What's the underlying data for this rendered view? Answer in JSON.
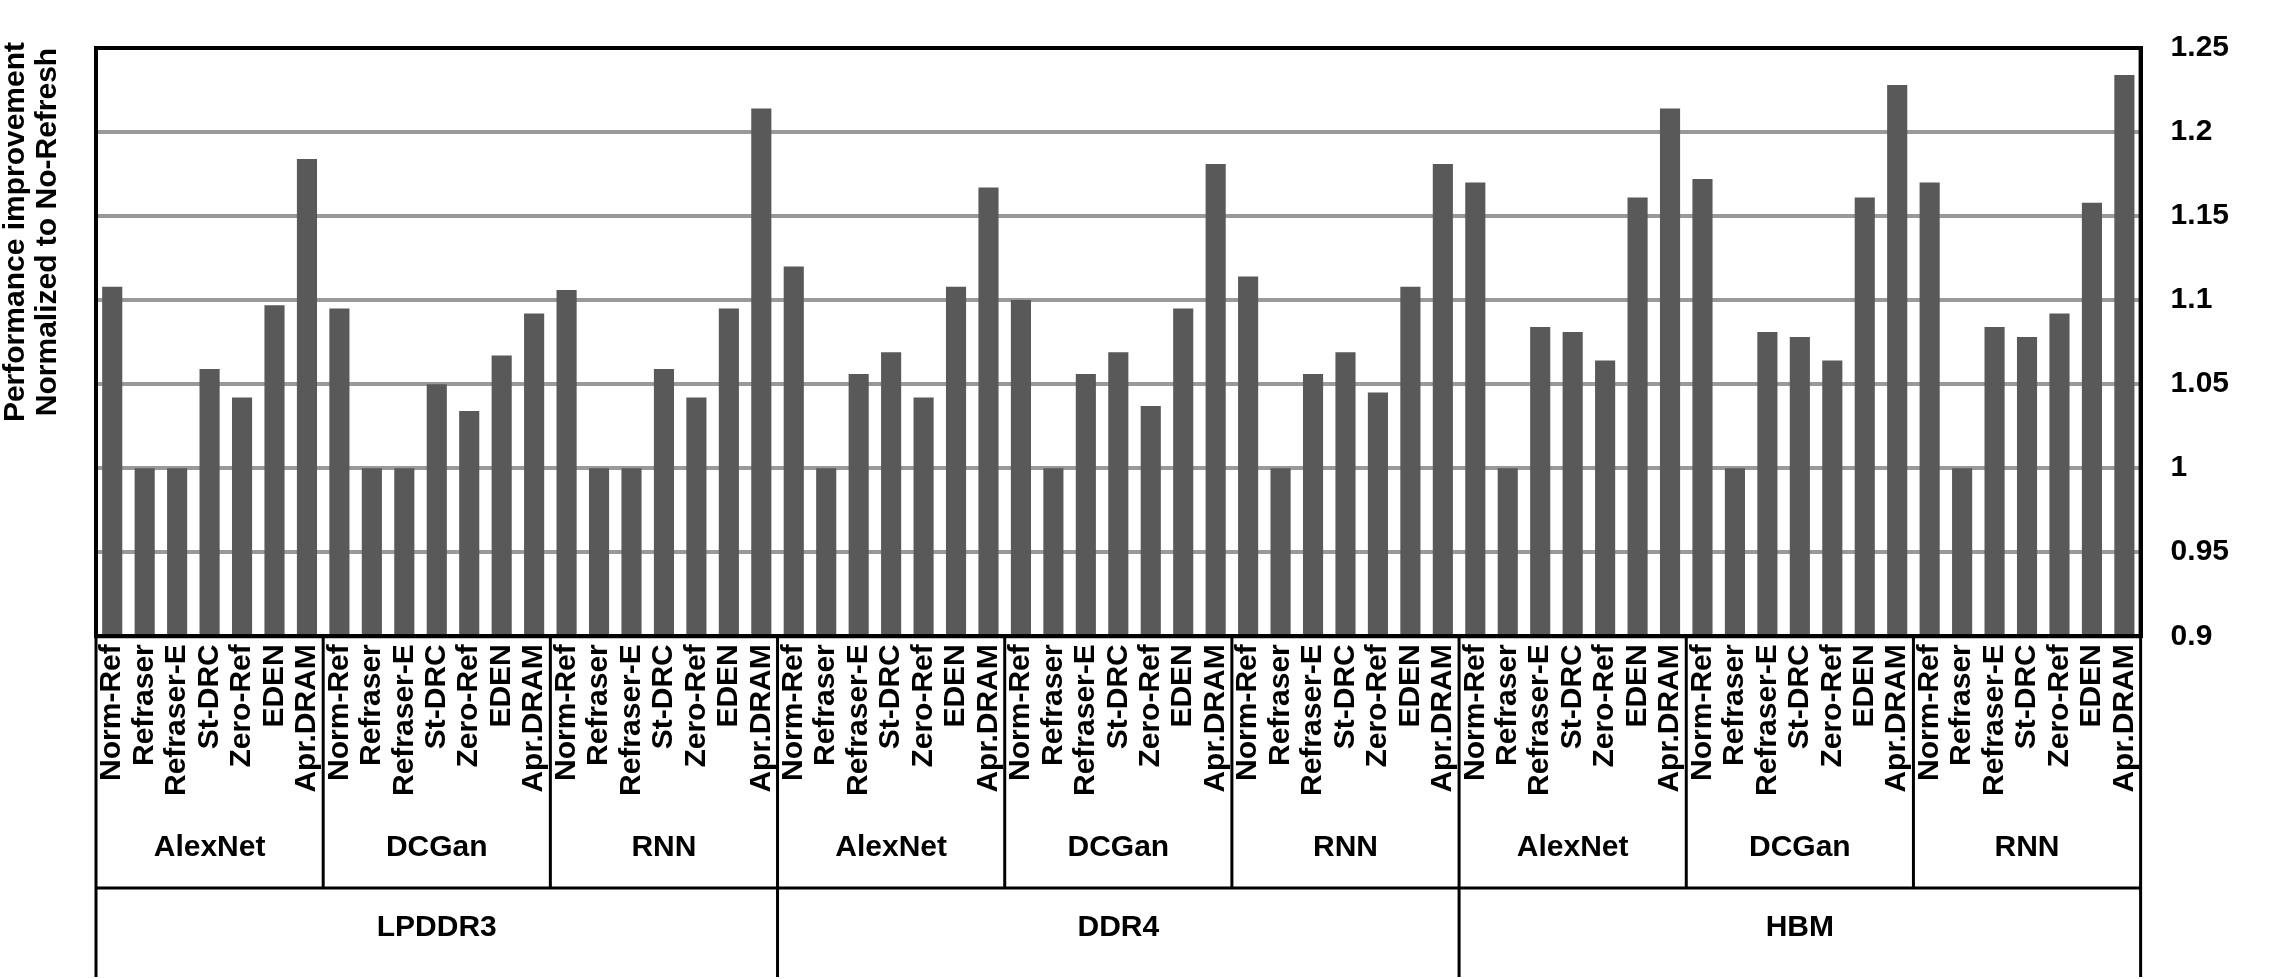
{
  "chart_data": {
    "type": "bar",
    "ylabel": "Performance improvement Normalized to No-Refresh",
    "categories": [
      "Norm-Ref",
      "Refraser",
      "Refraser-E",
      "St-DRC",
      "Zero-Ref",
      "EDEN",
      "Apr.DRAM",
      "Norm-Ref",
      "Refraser",
      "Refraser-E",
      "St-DRC",
      "Zero-Ref",
      "EDEN",
      "Apr.DRAM",
      "Norm-Ref",
      "Refraser",
      "Refraser-E",
      "St-DRC",
      "Zero-Ref",
      "EDEN",
      "Apr.DRAM",
      "Norm-Ref",
      "Refraser",
      "Refraser-E",
      "St-DRC",
      "Zero-Ref",
      "EDEN",
      "Apr.DRAM",
      "Norm-Ref",
      "Refraser",
      "Refraser-E",
      "St-DRC",
      "Zero-Ref",
      "EDEN",
      "Apr.DRAM",
      "Norm-Ref",
      "Refraser",
      "Refraser-E",
      "St-DRC",
      "Zero-Ref",
      "EDEN",
      "Apr.DRAM",
      "Norm-Ref",
      "Refraser",
      "Refraser-E",
      "St-DRC",
      "Zero-Ref",
      "EDEN",
      "Apr.DRAM",
      "Norm-Ref",
      "Refraser",
      "Refraser-E",
      "St-DRC",
      "Zero-Ref",
      "EDEN",
      "Apr.DRAM",
      "Norm-Ref",
      "Refraser",
      "Refraser-E",
      "St-DRC",
      "Zero-Ref",
      "EDEN",
      "Apr.DRAM"
    ],
    "values": [
      1.108,
      1.0,
      1.0,
      1.059,
      1.042,
      1.097,
      1.184,
      1.095,
      1.0,
      1.0,
      1.05,
      1.034,
      1.067,
      1.092,
      1.106,
      1.0,
      1.0,
      1.059,
      1.042,
      1.095,
      1.214,
      1.12,
      1.0,
      1.056,
      1.069,
      1.042,
      1.108,
      1.167,
      1.1,
      1.0,
      1.056,
      1.069,
      1.037,
      1.095,
      1.181,
      1.114,
      1.0,
      1.056,
      1.069,
      1.045,
      1.108,
      1.181,
      1.17,
      1.0,
      1.084,
      1.081,
      1.064,
      1.161,
      1.214,
      1.172,
      1.0,
      1.081,
      1.078,
      1.064,
      1.161,
      1.228,
      1.17,
      1.0,
      1.084,
      1.078,
      1.092,
      1.158,
      1.234
    ],
    "color": "#595959",
    "ylim": [
      0.9,
      1.25
    ],
    "yticks": [
      0.9,
      0.95,
      1,
      1.05,
      1.1,
      1.15,
      1.2,
      1.25
    ],
    "grid": "y",
    "legend": false,
    "annotations": [
      "AlexNet",
      "DCGan",
      "RNN",
      "AlexNet",
      "DCGan",
      "RNN",
      "AlexNet",
      "DCGan",
      "RNN",
      "LPDDR3",
      "DDR4",
      "HBM"
    ]
  }
}
